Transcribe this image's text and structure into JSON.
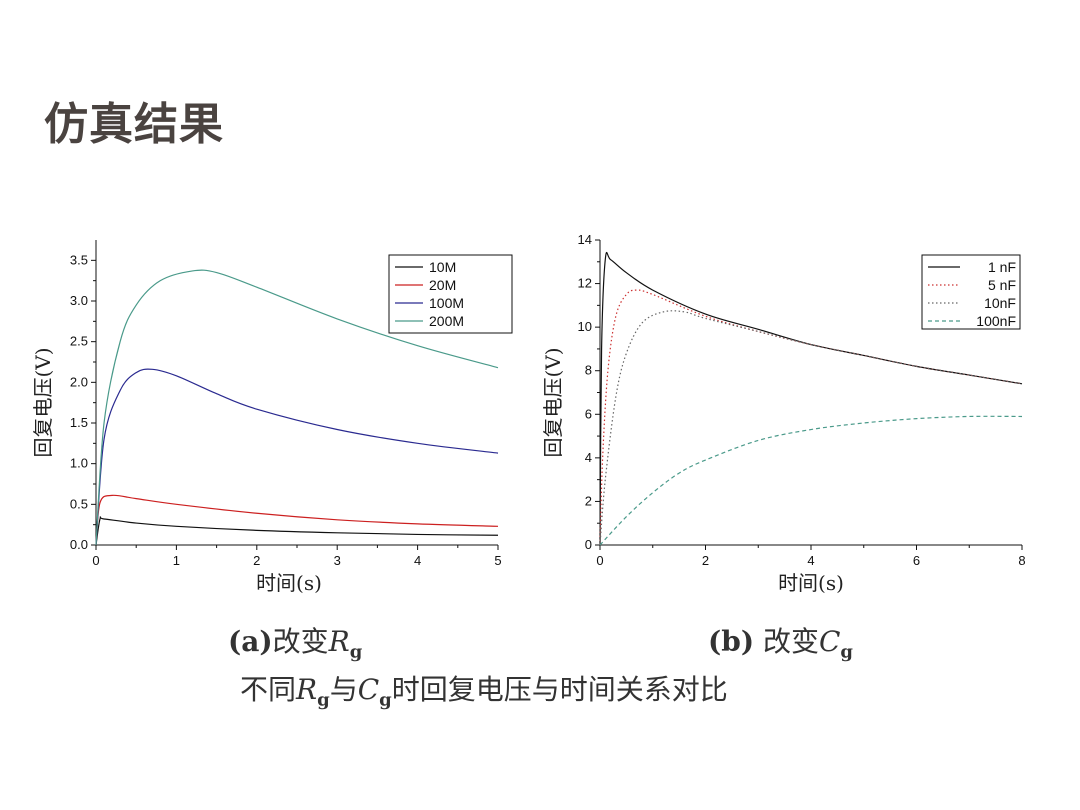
{
  "slide": {
    "title": "仿真结果"
  },
  "captions": {
    "a": {
      "prefix": "(a)",
      "text": "改变",
      "var": "R",
      "sub": "g"
    },
    "b": {
      "prefix": "(b)",
      "text": " 改变",
      "var": "C",
      "sub": "g"
    },
    "main": {
      "t1": "不同",
      "v1": "R",
      "s1": "g",
      "t2": "与",
      "v2": "C",
      "s2": "g",
      "t3": "时回复电压与时间关系对比"
    }
  },
  "chart_data": [
    {
      "type": "line",
      "xlabel": "时间(s)",
      "ylabel": "回复电压(V)",
      "xlim": [
        0,
        5
      ],
      "ylim": [
        0,
        3.75
      ],
      "xticks": [
        "0",
        "1",
        "2",
        "3",
        "4",
        "5"
      ],
      "yticks": [
        "0.0",
        "0.5",
        "1.0",
        "1.5",
        "2.0",
        "2.5",
        "3.0",
        "3.5"
      ],
      "legend_position": "top-right",
      "grid": false,
      "series": [
        {
          "name": "10M",
          "color": "#111111",
          "dash": "solid",
          "x": [
            0,
            0.05,
            0.1,
            0.5,
            1,
            2,
            3,
            4,
            5
          ],
          "y": [
            0,
            0.32,
            0.32,
            0.27,
            0.23,
            0.18,
            0.15,
            0.13,
            0.12
          ]
        },
        {
          "name": "20M",
          "color": "#cc2020",
          "dash": "solid",
          "x": [
            0,
            0.05,
            0.2,
            0.5,
            1,
            2,
            3,
            4,
            5
          ],
          "y": [
            0,
            0.52,
            0.61,
            0.57,
            0.5,
            0.39,
            0.31,
            0.26,
            0.23
          ]
        },
        {
          "name": "100M",
          "color": "#2a2a90",
          "dash": "solid",
          "x": [
            0,
            0.1,
            0.3,
            0.5,
            0.7,
            1,
            1.5,
            2,
            3,
            4,
            5
          ],
          "y": [
            0,
            1.3,
            1.9,
            2.12,
            2.16,
            2.08,
            1.86,
            1.67,
            1.42,
            1.25,
            1.13
          ]
        },
        {
          "name": "200M",
          "color": "#4a9a8a",
          "dash": "solid",
          "x": [
            0,
            0.1,
            0.3,
            0.5,
            0.8,
            1.2,
            1.5,
            2,
            3,
            4,
            5
          ],
          "y": [
            0,
            1.5,
            2.5,
            2.95,
            3.25,
            3.37,
            3.35,
            3.17,
            2.78,
            2.45,
            2.18
          ]
        }
      ]
    },
    {
      "type": "line",
      "xlabel": "时间(s)",
      "ylabel": "回复电压(V)",
      "xlim": [
        0,
        8
      ],
      "ylim": [
        0,
        14
      ],
      "xticks": [
        "0",
        "2",
        "4",
        "6",
        "8"
      ],
      "yticks": [
        "0",
        "2",
        "4",
        "6",
        "8",
        "10",
        "12",
        "14"
      ],
      "legend_position": "top-right",
      "grid": false,
      "series": [
        {
          "name": "1 nF",
          "color": "#111111",
          "dash": "solid",
          "x": [
            0,
            0.03,
            0.1,
            0.2,
            0.5,
            1,
            2,
            3,
            4,
            5,
            6,
            7,
            8
          ],
          "y": [
            0,
            9,
            13.1,
            13.1,
            12.5,
            11.7,
            10.6,
            9.9,
            9.2,
            8.7,
            8.2,
            7.8,
            7.4
          ]
        },
        {
          "name": "5 nF",
          "color": "#cc3030",
          "dash": "dot",
          "x": [
            0,
            0.05,
            0.15,
            0.3,
            0.5,
            0.7,
            1,
            2,
            3,
            4,
            5,
            6,
            7,
            8
          ],
          "y": [
            0,
            4,
            8,
            10.5,
            11.5,
            11.7,
            11.5,
            10.5,
            9.8,
            9.2,
            8.7,
            8.2,
            7.8,
            7.4
          ]
        },
        {
          "name": "10nF",
          "color": "#666666",
          "dash": "dot",
          "x": [
            0,
            0.1,
            0.3,
            0.5,
            0.8,
            1.2,
            1.6,
            2,
            3,
            4,
            5,
            6,
            7,
            8
          ],
          "y": [
            0,
            3,
            6.8,
            8.8,
            10.2,
            10.7,
            10.7,
            10.4,
            9.8,
            9.2,
            8.7,
            8.2,
            7.8,
            7.4
          ]
        },
        {
          "name": "100nF",
          "color": "#4a9a8a",
          "dash": "dash",
          "x": [
            0,
            0.5,
            1,
            1.5,
            2,
            3,
            4,
            5,
            6,
            7,
            8
          ],
          "y": [
            0,
            1.3,
            2.4,
            3.3,
            3.9,
            4.8,
            5.3,
            5.6,
            5.8,
            5.9,
            5.9
          ]
        }
      ]
    }
  ]
}
